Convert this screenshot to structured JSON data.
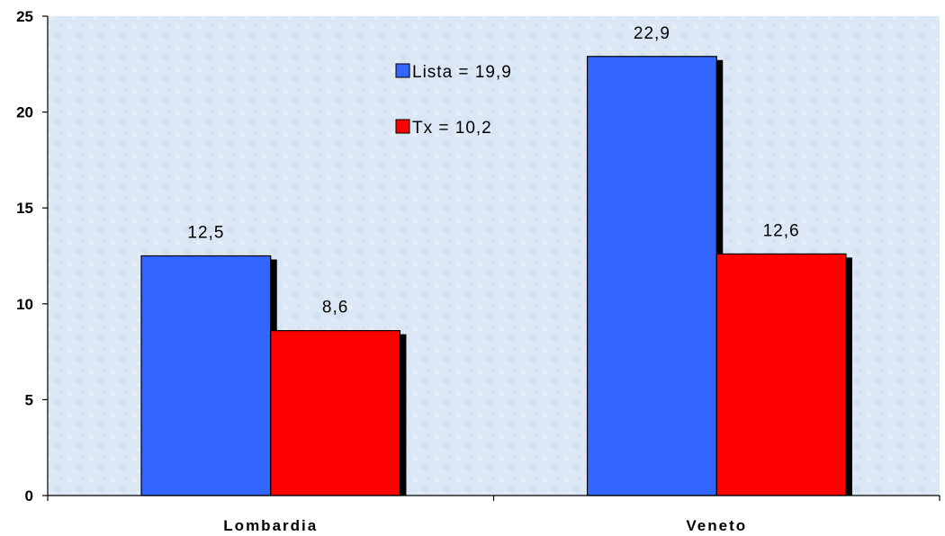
{
  "chart_data": {
    "type": "bar",
    "categories": [
      "Lombardia",
      "Veneto"
    ],
    "series": [
      {
        "name": "Lista = 19,9",
        "values": [
          12.5,
          22.9
        ],
        "labels": [
          "12,5",
          "22,9"
        ],
        "color": "#3366ff"
      },
      {
        "name": "Tx = 10,2",
        "values": [
          8.6,
          12.6
        ],
        "labels": [
          "8,6",
          "12,6"
        ],
        "color": "#ff0000"
      }
    ],
    "ylim": [
      0,
      25
    ],
    "yticks": [
      0,
      5,
      10,
      15,
      20,
      25
    ],
    "xlabel": "",
    "ylabel": "",
    "title": "",
    "legend_position": "top-center",
    "grid": false,
    "plot_background": "#dce8f6",
    "shadow_color": "#000000"
  }
}
